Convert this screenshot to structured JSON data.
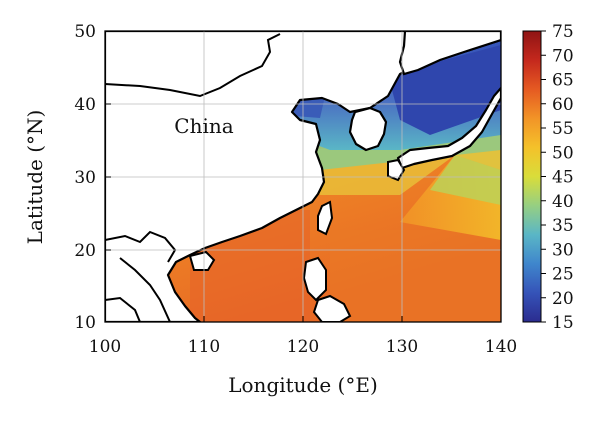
{
  "map": {
    "place_label": "China",
    "xlabel": "Longitude (°E)",
    "ylabel": "Latitude (°N)",
    "x_ticks": [
      "100",
      "110",
      "120",
      "130",
      "140"
    ],
    "y_ticks": [
      "10",
      "20",
      "30",
      "40",
      "50"
    ],
    "x_range": [
      100,
      140
    ],
    "y_range": [
      10,
      50
    ],
    "grid": true,
    "land_color": "#ffffff",
    "border_color": "#000000"
  },
  "colorbar": {
    "ticks": [
      "75",
      "70",
      "65",
      "60",
      "55",
      "50",
      "45",
      "40",
      "35",
      "30",
      "25",
      "20",
      "15"
    ],
    "range": [
      15,
      75
    ],
    "position": "right",
    "colors": [
      "#2b2c8f",
      "#3553b8",
      "#3f86cc",
      "#5ab6c6",
      "#96cf82",
      "#d9dd3a",
      "#f4c12a",
      "#f29427",
      "#e55a22",
      "#c4281d",
      "#8f1414"
    ]
  }
}
